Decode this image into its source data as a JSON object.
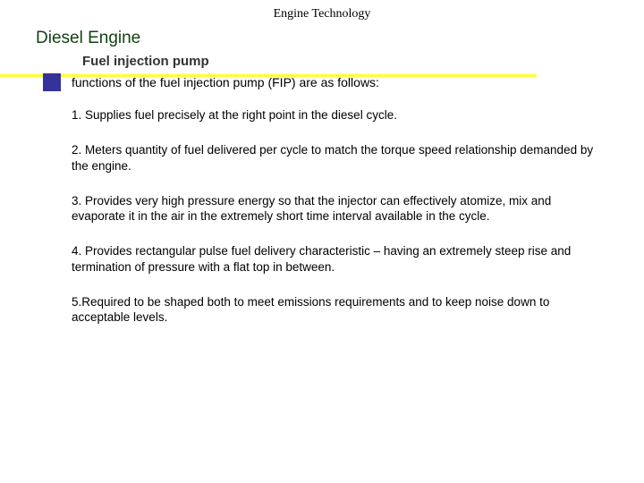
{
  "header": "Engine Technology",
  "title": "Diesel Engine",
  "subtitle": "Fuel injection pump",
  "intro": "functions of the fuel injection pump (FIP) are as follows:",
  "items": [
    "1. Supplies fuel precisely at the right point in the diesel cycle.",
    "2. Meters quantity of fuel delivered per cycle to match the torque speed relationship demanded by the engine.",
    "3. Provides very high pressure energy so that the injector can effectively atomize, mix and evaporate it in the air in the extremely short time interval available in the cycle.",
    "4. Provides rectangular pulse fuel delivery characteristic – having an extremely steep rise and termination of pressure with a flat top in between.",
    "5.Required to be shaped both to meet emissions requirements and to keep noise down to acceptable levels."
  ],
  "colors": {
    "title": "#144214",
    "bar": "#ffff33",
    "square": "#333399",
    "bg": "#ffffff"
  }
}
